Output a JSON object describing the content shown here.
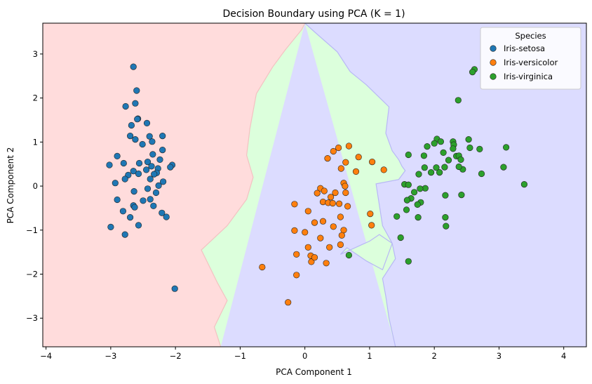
{
  "chart_data": {
    "type": "scatter",
    "title": "Decision Boundary using PCA (K = 1)",
    "xlabel": "PCA Component 1",
    "ylabel": "PCA Component 2",
    "xlim": [
      -4.05,
      4.35
    ],
    "ylim": [
      -3.65,
      3.7
    ],
    "xticks": [
      -4,
      -3,
      -2,
      -1,
      0,
      1,
      2,
      3,
      4
    ],
    "yticks": [
      -3,
      -2,
      -1,
      0,
      1,
      2,
      3
    ],
    "grid": false,
    "legend": {
      "title": "Species",
      "placement": "top-right"
    },
    "regions": {
      "boundary_red_green": [
        [
          -1.3,
          -3.65
        ],
        [
          -1.4,
          -3.2
        ],
        [
          -1.2,
          -2.6
        ],
        [
          -1.35,
          -2.2
        ],
        [
          -1.6,
          -1.45
        ],
        [
          -1.2,
          -0.9
        ],
        [
          -0.9,
          -0.3
        ],
        [
          -0.8,
          0.2
        ],
        [
          -0.9,
          0.7
        ],
        [
          -0.85,
          1.3
        ],
        [
          -0.75,
          2.1
        ],
        [
          -0.5,
          2.7
        ],
        [
          -0.3,
          3.1
        ],
        [
          -0.05,
          3.55
        ],
        [
          0.0,
          3.7
        ]
      ],
      "boundary_green_blue": [
        [
          0.0,
          3.7
        ],
        [
          0.15,
          3.5
        ],
        [
          0.5,
          3.05
        ],
        [
          0.7,
          2.6
        ],
        [
          0.95,
          2.3
        ],
        [
          1.3,
          1.8
        ],
        [
          1.25,
          1.2
        ],
        [
          1.35,
          0.8
        ],
        [
          1.45,
          0.6
        ],
        [
          1.5,
          0.45
        ],
        [
          1.55,
          0.35
        ],
        [
          1.45,
          0.15
        ],
        [
          1.1,
          0.05
        ],
        [
          1.2,
          -0.9
        ],
        [
          1.35,
          -1.3
        ],
        [
          1.2,
          -1.9
        ],
        [
          0.95,
          -1.7
        ],
        [
          0.65,
          -1.4
        ],
        [
          0.55,
          -1.55
        ],
        [
          1.0,
          -1.25
        ],
        [
          1.15,
          -1.1
        ],
        [
          1.35,
          -1.3
        ],
        [
          1.4,
          -1.65
        ],
        [
          1.2,
          -2.1
        ],
        [
          1.25,
          -2.5
        ],
        [
          1.3,
          -3.0
        ],
        [
          1.4,
          -3.65
        ]
      ]
    },
    "region_colors": {
      "setosa": "#ffdcdc",
      "versicolor": "#dcffdc",
      "virginica": "#dcdcff"
    },
    "series": [
      {
        "name": "Iris-setosa",
        "color": "#1f77b4",
        "points": [
          [
            -2.65,
            2.71
          ],
          [
            -2.6,
            2.17
          ],
          [
            -2.62,
            1.88
          ],
          [
            -2.77,
            1.81
          ],
          [
            -2.58,
            1.53
          ],
          [
            -2.59,
            1.52
          ],
          [
            -2.44,
            1.43
          ],
          [
            -2.68,
            1.38
          ],
          [
            -2.4,
            1.13
          ],
          [
            -2.7,
            1.14
          ],
          [
            -2.2,
            1.14
          ],
          [
            -2.62,
            1.06
          ],
          [
            -2.36,
            1.01
          ],
          [
            -2.51,
            0.95
          ],
          [
            -2.9,
            0.68
          ],
          [
            -2.2,
            0.82
          ],
          [
            -2.35,
            0.72
          ],
          [
            -2.8,
            0.52
          ],
          [
            -2.24,
            0.6
          ],
          [
            -2.43,
            0.55
          ],
          [
            -2.56,
            0.52
          ],
          [
            -2.37,
            0.45
          ],
          [
            -2.27,
            0.4
          ],
          [
            -2.45,
            0.37
          ],
          [
            -2.65,
            0.34
          ],
          [
            -2.29,
            0.3
          ],
          [
            -2.33,
            0.27
          ],
          [
            -3.02,
            0.48
          ],
          [
            -2.05,
            0.48
          ],
          [
            -2.08,
            0.43
          ],
          [
            -2.57,
            0.28
          ],
          [
            -2.73,
            0.25
          ],
          [
            -2.78,
            0.16
          ],
          [
            -2.39,
            0.16
          ],
          [
            -2.93,
            0.07
          ],
          [
            -2.19,
            0.1
          ],
          [
            -2.26,
            0.01
          ],
          [
            -2.43,
            -0.06
          ],
          [
            -2.64,
            -0.12
          ],
          [
            -2.3,
            -0.15
          ],
          [
            -2.9,
            -0.31
          ],
          [
            -2.39,
            -0.3
          ],
          [
            -2.5,
            -0.33
          ],
          [
            -2.34,
            -0.45
          ],
          [
            -2.65,
            -0.44
          ],
          [
            -2.63,
            -0.48
          ],
          [
            -2.81,
            -0.57
          ],
          [
            -2.21,
            -0.61
          ],
          [
            -2.14,
            -0.7
          ],
          [
            -2.7,
            -0.71
          ],
          [
            -2.57,
            -0.89
          ],
          [
            -3.0,
            -0.93
          ],
          [
            -2.78,
            -1.1
          ],
          [
            -2.01,
            -2.33
          ]
        ]
      },
      {
        "name": "Iris-versicolor",
        "color": "#ff7f0e",
        "points": [
          [
            0.44,
            0.79
          ],
          [
            0.52,
            0.87
          ],
          [
            0.68,
            0.91
          ],
          [
            0.83,
            0.66
          ],
          [
            0.35,
            0.63
          ],
          [
            0.63,
            0.54
          ],
          [
            1.04,
            0.55
          ],
          [
            0.79,
            0.33
          ],
          [
            0.56,
            0.4
          ],
          [
            0.6,
            0.07
          ],
          [
            0.62,
            0.0
          ],
          [
            1.22,
            0.37
          ],
          [
            0.24,
            -0.05
          ],
          [
            0.3,
            -0.11
          ],
          [
            0.19,
            -0.16
          ],
          [
            0.47,
            -0.15
          ],
          [
            0.63,
            -0.15
          ],
          [
            0.4,
            -0.25
          ],
          [
            0.28,
            -0.36
          ],
          [
            0.36,
            -0.38
          ],
          [
            0.43,
            -0.39
          ],
          [
            0.53,
            -0.4
          ],
          [
            -0.16,
            -0.41
          ],
          [
            0.05,
            -0.57
          ],
          [
            1.01,
            -0.63
          ],
          [
            0.66,
            -0.46
          ],
          [
            0.55,
            -0.7
          ],
          [
            0.28,
            -0.8
          ],
          [
            0.44,
            -0.92
          ],
          [
            1.03,
            -0.89
          ],
          [
            0.6,
            -1.0
          ],
          [
            -0.16,
            -1.01
          ],
          [
            0.0,
            -1.05
          ],
          [
            0.24,
            -1.18
          ],
          [
            0.15,
            -0.83
          ],
          [
            0.57,
            -1.12
          ],
          [
            0.55,
            -1.33
          ],
          [
            0.38,
            -1.39
          ],
          [
            0.05,
            -1.39
          ],
          [
            -0.13,
            -1.55
          ],
          [
            0.09,
            -1.58
          ],
          [
            0.1,
            -1.72
          ],
          [
            0.33,
            -1.75
          ],
          [
            -0.66,
            -1.84
          ],
          [
            -0.13,
            -2.02
          ],
          [
            -0.26,
            -2.64
          ],
          [
            0.15,
            -1.62
          ]
        ]
      },
      {
        "name": "Iris-virginica",
        "color": "#2ca02c",
        "points": [
          [
            2.62,
            2.65
          ],
          [
            2.59,
            2.59
          ],
          [
            2.37,
            1.95
          ],
          [
            2.04,
            1.07
          ],
          [
            2.1,
            1.01
          ],
          [
            2.53,
            1.06
          ],
          [
            2.29,
            1.01
          ],
          [
            2.0,
            0.97
          ],
          [
            2.3,
            0.94
          ],
          [
            1.89,
            0.9
          ],
          [
            3.11,
            0.88
          ],
          [
            2.55,
            0.87
          ],
          [
            2.29,
            0.85
          ],
          [
            2.7,
            0.84
          ],
          [
            2.14,
            0.76
          ],
          [
            1.84,
            0.69
          ],
          [
            1.6,
            0.71
          ],
          [
            2.34,
            0.68
          ],
          [
            2.38,
            0.69
          ],
          [
            2.41,
            0.6
          ],
          [
            2.22,
            0.59
          ],
          [
            2.16,
            0.43
          ],
          [
            2.44,
            0.38
          ],
          [
            2.38,
            0.44
          ],
          [
            2.03,
            0.42
          ],
          [
            1.85,
            0.42
          ],
          [
            1.95,
            0.31
          ],
          [
            1.76,
            0.27
          ],
          [
            2.08,
            0.31
          ],
          [
            2.73,
            0.28
          ],
          [
            3.07,
            0.43
          ],
          [
            1.54,
            0.04
          ],
          [
            1.6,
            0.03
          ],
          [
            1.86,
            -0.05
          ],
          [
            1.78,
            -0.06
          ],
          [
            1.69,
            -0.14
          ],
          [
            3.39,
            0.04
          ],
          [
            2.17,
            -0.21
          ],
          [
            2.42,
            -0.2
          ],
          [
            1.42,
            -0.69
          ],
          [
            1.79,
            -0.37
          ],
          [
            1.74,
            -0.42
          ],
          [
            1.57,
            -0.54
          ],
          [
            1.64,
            -0.28
          ],
          [
            1.58,
            -0.32
          ],
          [
            1.75,
            -0.71
          ],
          [
            1.48,
            -1.17
          ],
          [
            2.17,
            -0.71
          ],
          [
            2.18,
            -0.91
          ],
          [
            1.6,
            -1.71
          ],
          [
            0.68,
            -1.57
          ]
        ]
      }
    ]
  }
}
